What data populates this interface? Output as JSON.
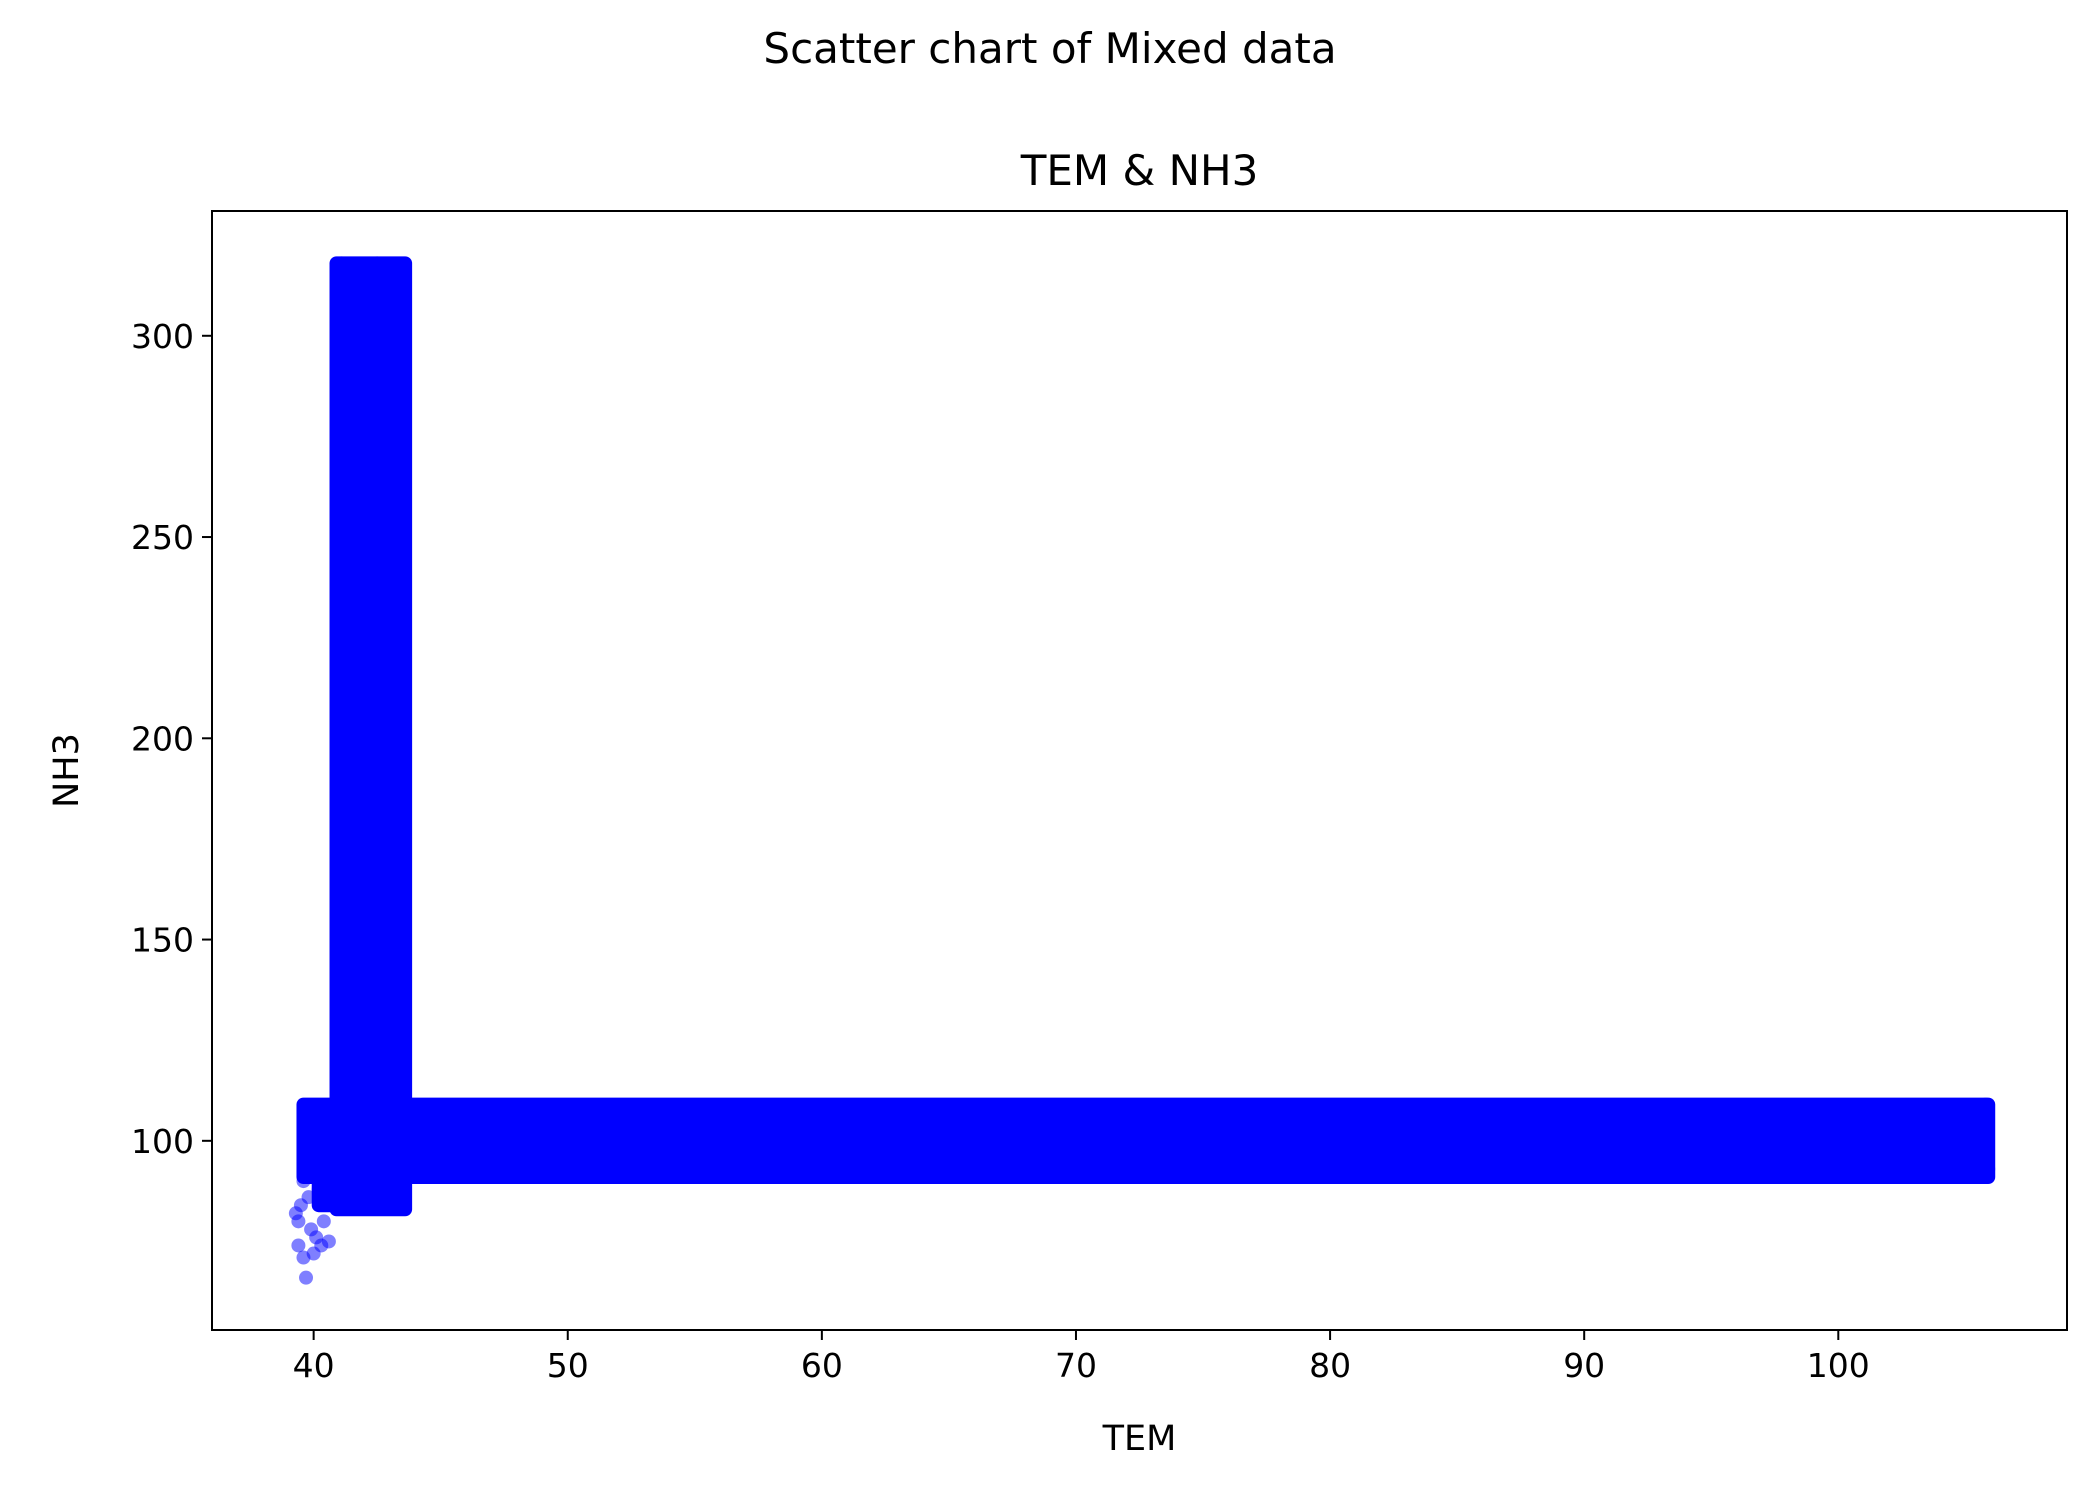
{
  "figure": {
    "suptitle": "Scatter chart of Mixed data"
  },
  "chart_data": {
    "type": "scatter",
    "title": "TEM & NH3",
    "xlabel": "TEM",
    "ylabel": "NH3",
    "xlim": [
      36,
      109
    ],
    "ylim": [
      53,
      331
    ],
    "xticks": [
      40,
      50,
      60,
      70,
      80,
      90,
      100
    ],
    "yticks": [
      100,
      150,
      200,
      250,
      300
    ],
    "grid": false,
    "marker_color": "#0000ff",
    "marker_alpha": 0.5,
    "series": [
      {
        "regions": [
          {
            "shape": "band",
            "x": [
              40.9,
              43.6
            ],
            "y": [
              83,
              318
            ]
          },
          {
            "shape": "band",
            "x": [
              39.6,
              105.9
            ],
            "y": [
              91,
              109
            ]
          },
          {
            "shape": "band",
            "x": [
              40.2,
              41.2
            ],
            "y": [
              84,
              100
            ]
          }
        ],
        "points": [
          {
            "x": 39.3,
            "y": 82
          },
          {
            "x": 39.4,
            "y": 80
          },
          {
            "x": 39.5,
            "y": 84
          },
          {
            "x": 39.4,
            "y": 74
          },
          {
            "x": 39.6,
            "y": 71
          },
          {
            "x": 39.7,
            "y": 66
          },
          {
            "x": 39.9,
            "y": 78
          },
          {
            "x": 40.0,
            "y": 72
          },
          {
            "x": 40.1,
            "y": 76
          },
          {
            "x": 40.3,
            "y": 74
          },
          {
            "x": 40.4,
            "y": 80
          },
          {
            "x": 40.6,
            "y": 75
          },
          {
            "x": 39.8,
            "y": 86
          },
          {
            "x": 40.2,
            "y": 88
          },
          {
            "x": 39.6,
            "y": 90
          },
          {
            "x": 41.1,
            "y": 318
          },
          {
            "x": 41.6,
            "y": 317
          },
          {
            "x": 42.5,
            "y": 318
          },
          {
            "x": 43.1,
            "y": 317
          },
          {
            "x": 43.5,
            "y": 316
          },
          {
            "x": 105.8,
            "y": 109
          },
          {
            "x": 105.9,
            "y": 93
          },
          {
            "x": 39.8,
            "y": 108
          }
        ]
      }
    ]
  }
}
